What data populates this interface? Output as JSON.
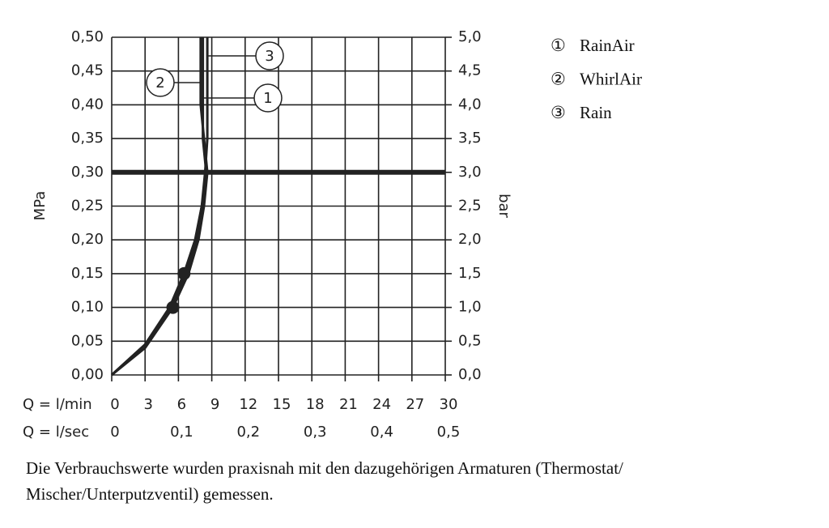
{
  "chart_data": {
    "type": "line",
    "xlabel": "Q = l/min",
    "x2label": "Q = l/sec",
    "ylabel": "MPa",
    "y2label": "bar",
    "xlim": [
      0,
      30
    ],
    "xticks": [
      0,
      3,
      6,
      9,
      12,
      15,
      18,
      21,
      24,
      27,
      30
    ],
    "x2lim": [
      0,
      0.5
    ],
    "x2ticks": [
      0,
      {
        "value": 0.1,
        "label": "0,1"
      },
      {
        "value": 0.2,
        "label": "0,2"
      },
      {
        "value": 0.3,
        "label": "0,3"
      },
      {
        "value": 0.4,
        "label": "0,4"
      },
      {
        "value": 0.5,
        "label": "0,5"
      }
    ],
    "ylim": [
      0,
      0.5
    ],
    "yticks": [
      {
        "value": 0,
        "label": "0,00"
      },
      {
        "value": 0.05,
        "label": "0,05"
      },
      {
        "value": 0.1,
        "label": "0,10"
      },
      {
        "value": 0.15,
        "label": "0,15"
      },
      {
        "value": 0.2,
        "label": "0,20"
      },
      {
        "value": 0.25,
        "label": "0,25"
      },
      {
        "value": 0.3,
        "label": "0,30"
      },
      {
        "value": 0.35,
        "label": "0,35"
      },
      {
        "value": 0.4,
        "label": "0,40"
      },
      {
        "value": 0.45,
        "label": "0,45"
      },
      {
        "value": 0.5,
        "label": "0,50"
      }
    ],
    "y2lim": [
      0,
      5
    ],
    "y2ticks": [
      {
        "value": 0,
        "label": "0,0"
      },
      {
        "value": 0.5,
        "label": "0,5"
      },
      {
        "value": 1,
        "label": "1,0"
      },
      {
        "value": 1.5,
        "label": "1,5"
      },
      {
        "value": 2,
        "label": "2,0"
      },
      {
        "value": 2.5,
        "label": "2,5"
      },
      {
        "value": 3,
        "label": "3,0"
      },
      {
        "value": 3.5,
        "label": "3,5"
      },
      {
        "value": 4,
        "label": "4,0"
      },
      {
        "value": 4.5,
        "label": "4,5"
      },
      {
        "value": 5,
        "label": "5,0"
      }
    ],
    "grid": true,
    "reference_line": 0.3,
    "points": {
      "x": [
        5.5,
        6.5
      ],
      "y": [
        0.1,
        0.15
      ]
    },
    "series": [
      {
        "name": "RainAir",
        "symbol": "①",
        "callout": "1",
        "color": "#222222",
        "x": [
          0,
          3,
          5.3,
          6.7,
          7.6,
          8.2,
          8.5,
          8.2,
          8.2
        ],
        "values": [
          0,
          0.045,
          0.1,
          0.15,
          0.2,
          0.26,
          0.3,
          0.35,
          0.5
        ]
      },
      {
        "name": "WhirlAir",
        "symbol": "②",
        "callout": "2",
        "color": "#222222",
        "x": [
          0,
          3,
          5.5,
          6.9,
          7.8,
          8.3,
          8.6,
          8.3,
          8.0,
          8.0
        ],
        "values": [
          0,
          0.04,
          0.1,
          0.15,
          0.2,
          0.25,
          0.3,
          0.35,
          0.4,
          0.5
        ]
      },
      {
        "name": "Rain",
        "symbol": "③",
        "callout": "3",
        "color": "#222222",
        "x": [
          0,
          3,
          5.2,
          6.5,
          7.5,
          8.1,
          8.4,
          8.6,
          8.6
        ],
        "values": [
          0,
          0.045,
          0.1,
          0.15,
          0.2,
          0.25,
          0.3,
          0.35,
          0.5
        ]
      }
    ],
    "note": [
      "Die Verbrauchswerte wurden praxisnah mit den dazugehörigen Armaturen (Thermostat/",
      "Mischer/Unterputzventil) gemessen."
    ]
  }
}
